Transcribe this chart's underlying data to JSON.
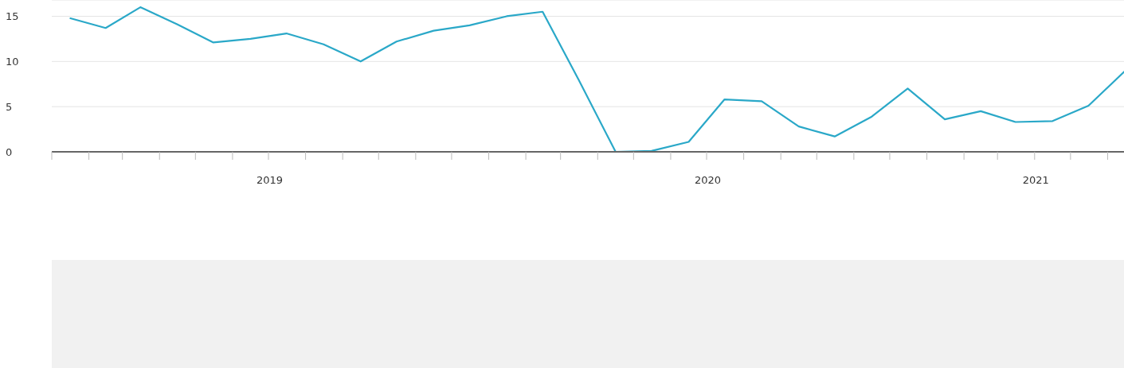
{
  "chart_data": {
    "type": "line",
    "x": [
      "2019-01-16",
      "2019-02-15",
      "2019-03-16",
      "2019-04-16",
      "2019-05-16",
      "2019-06-16",
      "2019-07-16",
      "2019-08-16",
      "2019-09-16",
      "2019-10-16",
      "2019-11-16",
      "2019-12-16",
      "2020-01-16",
      "2020-02-15",
      "2020-03-16",
      "2020-04-16",
      "2020-05-16",
      "2020-06-16",
      "2020-07-16",
      "2020-08-16",
      "2020-09-16",
      "2020-10-16",
      "2020-11-16",
      "2020-12-16",
      "2021-01-16",
      "2021-02-15",
      "2021-03-16",
      "2021-04-16",
      "2021-05-16",
      "2021-06-16"
    ],
    "series": [
      {
        "color": "#2aa8c8",
        "values": [
          14.8,
          13.7,
          16.0,
          14.1,
          12.1,
          12.5,
          13.1,
          11.9,
          10.0,
          12.2,
          13.4,
          14.0,
          15.0,
          15.5,
          8.0,
          0,
          0.1,
          1.1,
          5.8,
          5.6,
          2.8,
          1.7,
          3.9,
          7.0,
          3.6,
          4.5,
          3.3,
          3.4,
          5.1,
          9.0
        ]
      }
    ],
    "xlim": [
      "2019-01-01",
      "2021-06-16"
    ],
    "xticks": [
      {
        "value": "2019-01-01",
        "label": null
      },
      {
        "value": "2019-02-01",
        "label": null
      },
      {
        "value": "2019-03-01",
        "label": null
      },
      {
        "value": "2019-04-01",
        "label": null
      },
      {
        "value": "2019-05-01",
        "label": null
      },
      {
        "value": "2019-06-01",
        "label": null
      },
      {
        "value": "2019-07-01",
        "label": null
      },
      {
        "value": "2019-08-01",
        "label": null
      },
      {
        "value": "2019-09-01",
        "label": null
      },
      {
        "value": "2019-10-01",
        "label": null
      },
      {
        "value": "2019-11-01",
        "label": null
      },
      {
        "value": "2019-12-01",
        "label": null
      },
      {
        "value": "2020-01-01",
        "label": null
      },
      {
        "value": "2020-02-01",
        "label": null
      },
      {
        "value": "2020-03-01",
        "label": null
      },
      {
        "value": "2020-04-01",
        "label": null
      },
      {
        "value": "2020-05-01",
        "label": null
      },
      {
        "value": "2020-06-01",
        "label": null
      },
      {
        "value": "2020-07-01",
        "label": null
      },
      {
        "value": "2020-08-01",
        "label": null
      },
      {
        "value": "2020-09-01",
        "label": null
      },
      {
        "value": "2020-10-01",
        "label": null
      },
      {
        "value": "2020-11-01",
        "label": null
      },
      {
        "value": "2020-12-01",
        "label": null
      },
      {
        "value": "2021-01-01",
        "label": null
      },
      {
        "value": "2021-02-01",
        "label": null
      },
      {
        "value": "2021-03-01",
        "label": null
      },
      {
        "value": "2021-04-01",
        "label": null
      },
      {
        "value": "2021-05-01",
        "label": null
      },
      {
        "value": "2021-06-01",
        "label": null
      },
      {
        "value": "2019-07-02",
        "label": "2019"
      },
      {
        "value": "2020-07-02",
        "label": "2020"
      },
      {
        "value": "2021-04-02",
        "label": "2021"
      }
    ],
    "ylim": [
      0,
      16.8
    ],
    "yticks": [
      0,
      5,
      10,
      15
    ],
    "grid": "y",
    "legend": false,
    "marker": "none",
    "line_style": "solid"
  }
}
